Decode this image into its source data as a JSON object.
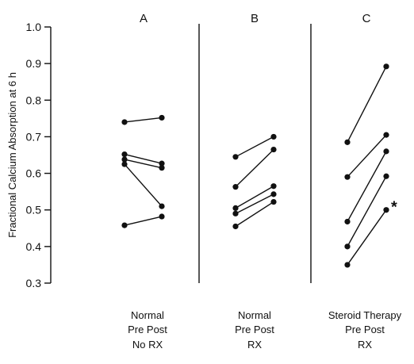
{
  "chart_data": {
    "type": "line",
    "ylabel": "Fractional Calcium Absorption at 6 h",
    "ylim": [
      0.3,
      1.0
    ],
    "yticks": [
      "0.3",
      "0.4",
      "0.5",
      "0.6",
      "0.7",
      "0.8",
      "0.9",
      "1.0"
    ],
    "panels": [
      {
        "title": "A",
        "categories": [
          "Pre",
          "Post"
        ],
        "group_labels": [
          "Normal",
          "Pre    Post",
          "No  RX"
        ],
        "subjects": [
          [
            0.74,
            0.752
          ],
          [
            0.652,
            0.627
          ],
          [
            0.638,
            0.615
          ],
          [
            0.625,
            0.51
          ],
          [
            0.458,
            0.482
          ]
        ],
        "marked_point": null
      },
      {
        "title": "B",
        "categories": [
          "Pre",
          "Post"
        ],
        "group_labels": [
          "Normal",
          "Pre   Post",
          "RX"
        ],
        "subjects": [
          [
            0.645,
            0.7
          ],
          [
            0.563,
            0.665
          ],
          [
            0.505,
            0.565
          ],
          [
            0.49,
            0.543
          ],
          [
            0.455,
            0.522
          ]
        ],
        "marked_point": null
      },
      {
        "title": "C",
        "categories": [
          "Pre",
          "Post"
        ],
        "group_labels": [
          "Steroid  Therapy",
          "Pre    Post",
          "RX"
        ],
        "subjects": [
          [
            0.685,
            0.892
          ],
          [
            0.59,
            0.705
          ],
          [
            0.468,
            0.66
          ],
          [
            0.4,
            0.592
          ],
          [
            0.35,
            0.5
          ]
        ],
        "marked_point": {
          "subject": 4,
          "symbol": "*"
        }
      }
    ]
  },
  "colors": {
    "ink": "#111111",
    "background": "#ffffff"
  }
}
